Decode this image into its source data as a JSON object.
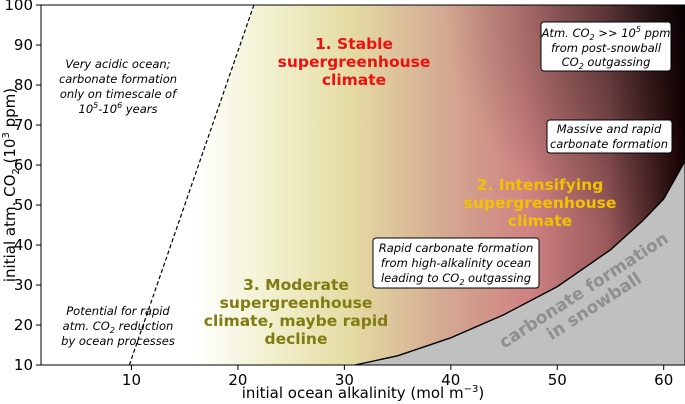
{
  "chart_data": {
    "type": "area",
    "xlabel": "initial ocean alkalinity (mol m",
    "xlabel_sup": "−3",
    "xlabel_end": ")",
    "ylabel": "initial atm. CO",
    "ylabel_sub": "2",
    "ylabel_mid": " (10",
    "ylabel_sup": "3",
    "ylabel_end": " ppm)",
    "xlim": [
      1.5,
      62
    ],
    "ylim": [
      10,
      100
    ],
    "xticks": [
      "10",
      "20",
      "30",
      "40",
      "50",
      "60"
    ],
    "yticks": [
      "10",
      "20",
      "30",
      "40",
      "50",
      "60",
      "70",
      "80",
      "90",
      "100"
    ],
    "xtick_values": [
      10,
      20,
      30,
      40,
      50,
      60
    ],
    "ytick_values": [
      10,
      20,
      30,
      40,
      50,
      60,
      70,
      80,
      90,
      100
    ],
    "dashed_line": {
      "x": [
        9.8,
        21.5
      ],
      "y": [
        10,
        100
      ]
    },
    "snowball_boundary": {
      "x": [
        31,
        35,
        40,
        45,
        50,
        55,
        58,
        60,
        62
      ],
      "y": [
        10,
        12.3,
        16.8,
        22.6,
        29.6,
        38.8,
        46,
        51.5,
        61
      ]
    },
    "colors": {
      "snowball_fill": "#c0c0c0",
      "red": "#ee1111",
      "gold": "#f2c200",
      "olive": "#7e7c12",
      "gray_text": "#8f8f8f"
    },
    "regions": {
      "r1": [
        "1. Stable",
        "supergreenhouse",
        "climate"
      ],
      "r2": [
        "2. Intensifying",
        "supergreenhouse",
        "climate"
      ],
      "r3": [
        "3. Moderate",
        "supergreenhouse",
        "climate, maybe rapid",
        "decline"
      ],
      "snowball": [
        "carbonate formation",
        "in snowball"
      ]
    },
    "annotations": {
      "acidic": [
        "Very acidic ocean;",
        "carbonate formation",
        "only on timescale of"
      ],
      "acidic_years_pre": "10",
      "acidic_years_sup1": "5",
      "acidic_years_mid": "-10",
      "acidic_years_sup2": "6",
      "acidic_years_post": " years",
      "potential_1": "Potential for rapid",
      "potential_2_pre": "atm. CO",
      "potential_2_sub": "2",
      "potential_2_post": " reduction",
      "potential_3": "by ocean processes",
      "atm_1_pre": "Atm. CO",
      "atm_1_sub": "2",
      "atm_1_mid": " >> 10",
      "atm_1_sup": "5",
      "atm_1_post": " ppm",
      "atm_2": "from post-snowball",
      "atm_3_pre": "CO",
      "atm_3_sub": "2",
      "atm_3_post": " outgassing",
      "massive_1": "Massive and rapid",
      "massive_2": "carbonate formation",
      "rapid_1": "Rapid carbonate formation",
      "rapid_2": "from high-alkalinity ocean",
      "rapid_3_pre": "leading to CO",
      "rapid_3_sub": "2",
      "rapid_3_post": " outgassing"
    }
  }
}
